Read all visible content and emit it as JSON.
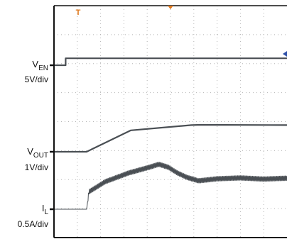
{
  "chart_data": {
    "type": "line",
    "title": "",
    "xlabel": "",
    "ylabel": "",
    "grid": true,
    "grid_divisions": {
      "x": 10,
      "y": 8
    },
    "trigger_marker": "T",
    "series": [
      {
        "name_main": "V",
        "name_sub": "EN",
        "scale": "5V/div",
        "marker_level": 0,
        "x_div": [
          0,
          0.5,
          0.5,
          10
        ],
        "y_div": [
          0,
          0,
          0.24,
          0.24
        ]
      },
      {
        "name_main": "V",
        "name_sub": "OUT",
        "scale": "1V/div",
        "marker_level": 0,
        "x_div": [
          0,
          1.4,
          3.3,
          5.9,
          6.3,
          10
        ],
        "y_div": [
          0,
          0,
          0.74,
          0.92,
          0.93,
          0.92
        ]
      },
      {
        "name_main": "I",
        "name_sub": "L",
        "scale": "0.5A/div",
        "marker_level": 0,
        "x_div": [
          0,
          1.4,
          1.5,
          2.2,
          3.2,
          4.1,
          4.5,
          4.9,
          5.3,
          5.7,
          6.2,
          7.0,
          8.0,
          9.0,
          10
        ],
        "y_div": [
          0,
          0,
          0.6,
          0.95,
          1.25,
          1.45,
          1.55,
          1.45,
          1.25,
          1.1,
          0.98,
          1.05,
          1.08,
          1.04,
          1.07
        ],
        "ripple_div": 0.08
      }
    ]
  }
}
